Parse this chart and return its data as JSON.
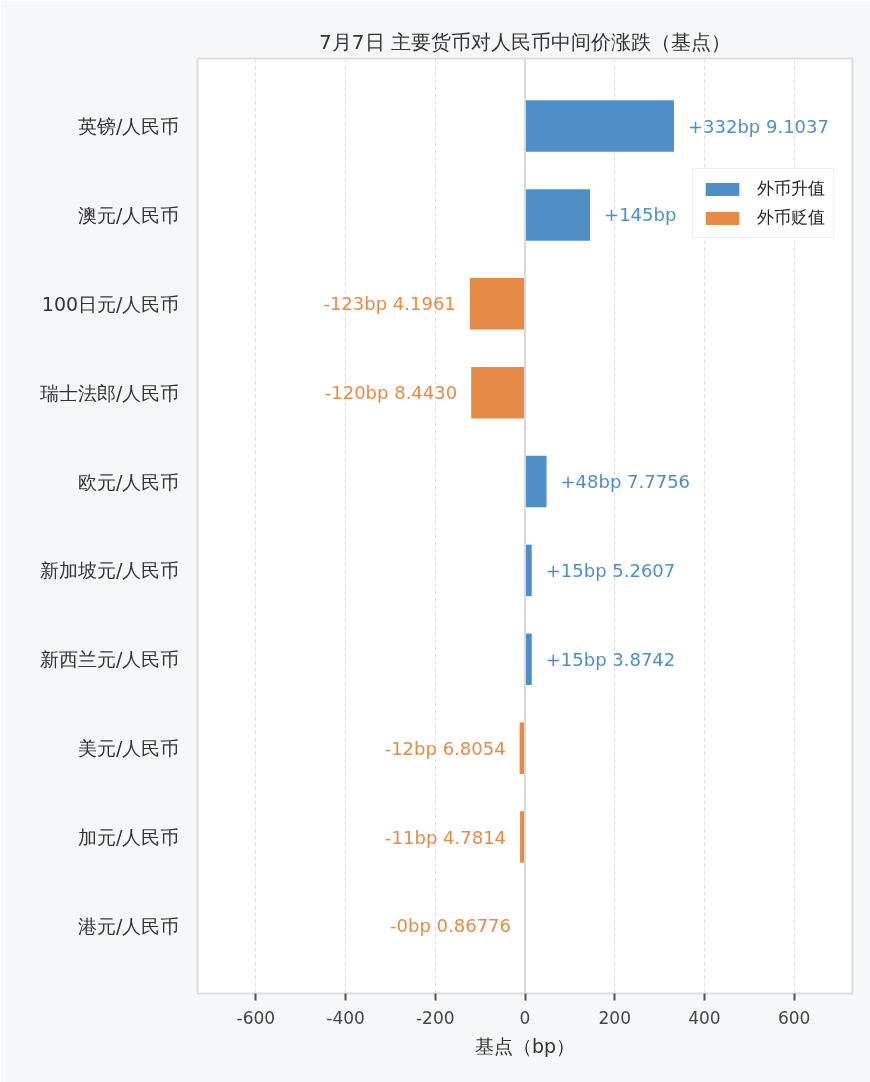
{
  "chart_data": {
    "type": "bar",
    "orientation": "horizontal",
    "title": "7月7日 主要货币对人民币中间价涨跌（基点）",
    "xlabel": "基点（bp）",
    "categories": [
      "英镑/人民币",
      "澳元/人民币",
      "100日元/人民币",
      "瑞士法郎/人民币",
      "欧元/人民币",
      "新加坡元/人民币",
      "新西兰元/人民币",
      "美元/人民币",
      "加元/人民币",
      "港元/人民币"
    ],
    "series": [
      {
        "name": "外币升值",
        "color": "#4f8ec6",
        "values": [
          332,
          145,
          null,
          null,
          48,
          15,
          15,
          null,
          null,
          null
        ],
        "value_labels": [
          "+332bp 9.1037",
          "+145bp",
          null,
          null,
          "+48bp 7.7756",
          "+15bp 5.2607",
          "+15bp 3.8742",
          null,
          null,
          null
        ]
      },
      {
        "name": "外币贬值",
        "color": "#e68a48",
        "values": [
          null,
          null,
          -123,
          -120,
          null,
          null,
          null,
          -12,
          -11,
          0
        ],
        "value_labels": [
          null,
          null,
          "-123bp 4.1961",
          "-120bp 8.4430",
          null,
          null,
          null,
          "-12bp 6.8054",
          "-11bp 4.7814",
          "-0bp 0.86776"
        ]
      }
    ],
    "xlim": [
      -730,
      730
    ],
    "xticks": [
      -600,
      -400,
      -200,
      0,
      200,
      400,
      600
    ],
    "grid": "x",
    "legend": "top right",
    "ref_lines": [
      {
        "axis": "x",
        "value": 0,
        "color": "#d9d9d9"
      }
    ]
  }
}
